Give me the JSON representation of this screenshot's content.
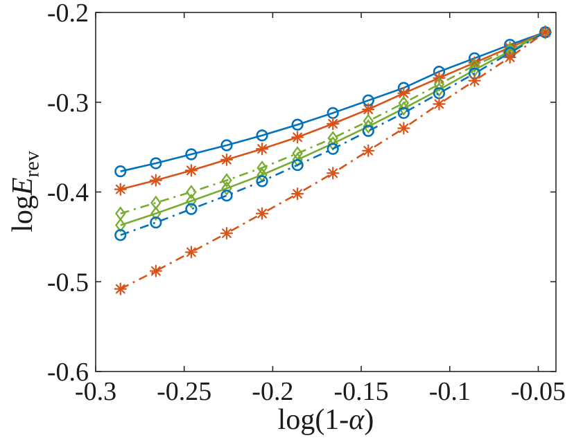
{
  "figure": {
    "background": "#ffffff",
    "axis_color": "#262626",
    "tick_label_color": "#1a1a1a"
  },
  "axes": {
    "xlabel_prefix": "log(1-",
    "xlabel_alpha": "α",
    "xlabel_suffix": ")",
    "ylabel_log": "log",
    "ylabel_E": "E",
    "ylabel_sub": "rev"
  },
  "chart_data": {
    "type": "line",
    "title": "",
    "xlabel": "log(1-α)",
    "ylabel": "logE_rev",
    "xlim": [
      -0.3,
      -0.04
    ],
    "ylim": [
      -0.6,
      -0.2
    ],
    "grid": false,
    "legend_position": "none",
    "xticks": {
      "values": [
        -0.3,
        -0.25,
        -0.2,
        -0.15,
        -0.1,
        -0.05
      ],
      "labels": [
        "-0.3",
        "-0.25",
        "-0.2",
        "-0.15",
        "-0.1",
        "-0.05"
      ]
    },
    "yticks": {
      "values": [
        -0.6,
        -0.5,
        -0.4,
        -0.3,
        -0.2
      ],
      "labels": [
        "-0.6",
        "-0.5",
        "-0.4",
        "-0.3",
        "-0.2"
      ]
    },
    "x": [
      -0.286,
      -0.266,
      -0.246,
      -0.226,
      -0.206,
      -0.186,
      -0.166,
      -0.146,
      -0.126,
      -0.106,
      -0.086,
      -0.066,
      -0.046
    ],
    "series": [
      {
        "name": "blue-solid-circle",
        "color": "#0072BD",
        "linestyle": "solid",
        "marker": "circle",
        "values": [
          -0.377,
          -0.368,
          -0.358,
          -0.348,
          -0.337,
          -0.325,
          -0.312,
          -0.298,
          -0.284,
          -0.266,
          -0.251,
          -0.236,
          -0.222
        ]
      },
      {
        "name": "orange-solid-asterisk",
        "color": "#D95319",
        "linestyle": "solid",
        "marker": "asterisk",
        "values": [
          -0.397,
          -0.387,
          -0.376,
          -0.364,
          -0.352,
          -0.339,
          -0.324,
          -0.308,
          -0.29,
          -0.273,
          -0.256,
          -0.239,
          -0.222
        ]
      },
      {
        "name": "green-dashdot-diamond",
        "color": "#77AC30",
        "linestyle": "dashdot",
        "marker": "diamond",
        "values": [
          -0.424,
          -0.412,
          -0.4,
          -0.387,
          -0.373,
          -0.357,
          -0.34,
          -0.321,
          -0.301,
          -0.28,
          -0.259,
          -0.241,
          -0.222
        ]
      },
      {
        "name": "green-solid-diamond",
        "color": "#77AC30",
        "linestyle": "solid",
        "marker": "diamond",
        "values": [
          -0.437,
          -0.424,
          -0.41,
          -0.396,
          -0.381,
          -0.364,
          -0.346,
          -0.327,
          -0.307,
          -0.286,
          -0.264,
          -0.243,
          -0.222
        ]
      },
      {
        "name": "blue-dashdot-circle",
        "color": "#0072BD",
        "linestyle": "dashdot",
        "marker": "circle",
        "values": [
          -0.448,
          -0.434,
          -0.419,
          -0.404,
          -0.388,
          -0.37,
          -0.352,
          -0.332,
          -0.312,
          -0.29,
          -0.268,
          -0.245,
          -0.222
        ]
      },
      {
        "name": "orange-dashdot-asterisk",
        "color": "#D95319",
        "linestyle": "dashdot",
        "marker": "asterisk",
        "values": [
          -0.508,
          -0.488,
          -0.467,
          -0.446,
          -0.424,
          -0.402,
          -0.379,
          -0.354,
          -0.329,
          -0.302,
          -0.276,
          -0.25,
          -0.222
        ]
      }
    ]
  }
}
